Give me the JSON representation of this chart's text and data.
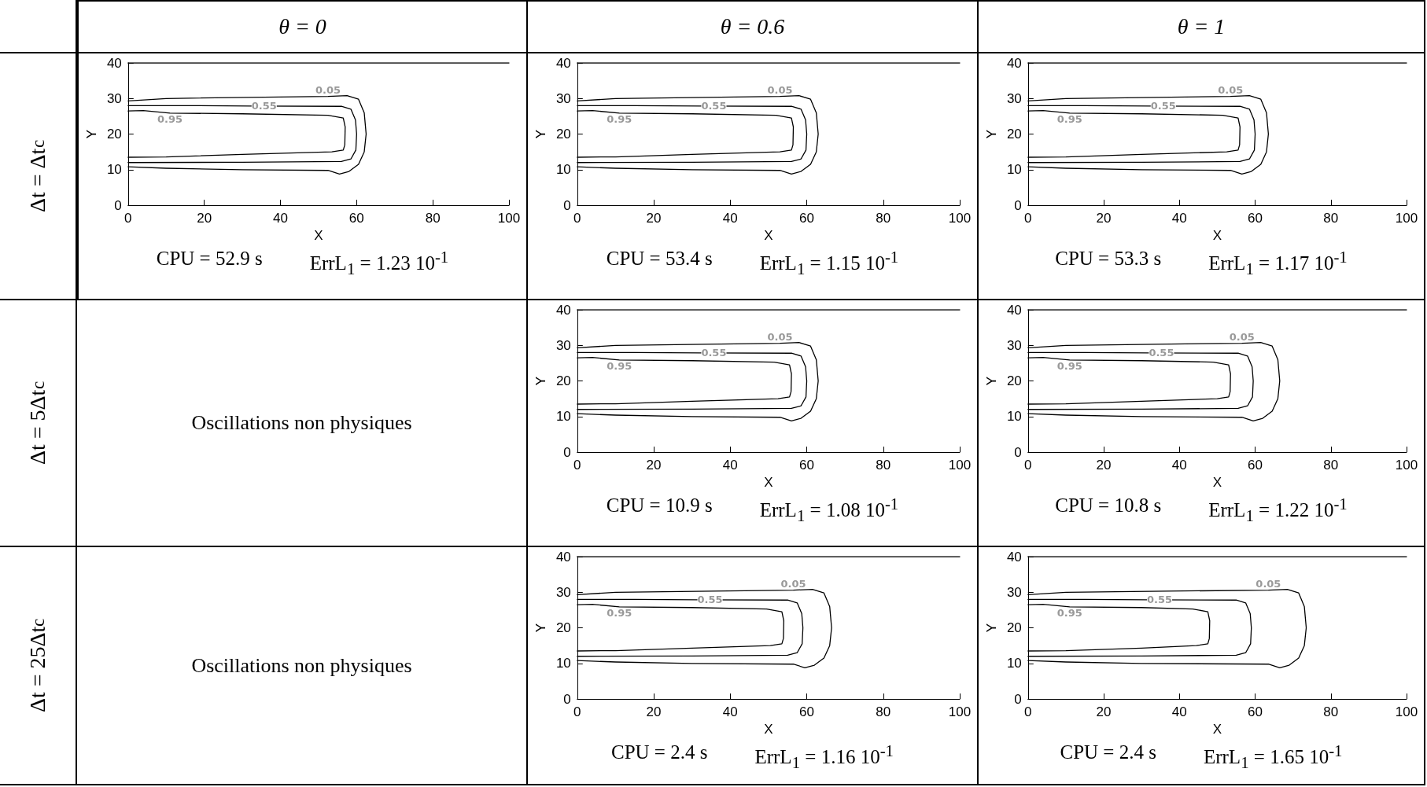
{
  "chart_data": [
    {
      "type": "other",
      "annotations": [
        "θ = 0",
        "θ = 0.6",
        "θ = 1",
        "Δt = Δt$_{c}$",
        "Δt = 5Δt$_{c}$",
        "Δt = 25Δt$_{c}$",
        "Oscillations non physiques",
        "Oscillations non physiques"
      ]
    },
    {
      "type": "line",
      "xlabel": "X",
      "ylabel": "Y",
      "xlim": [
        0,
        100
      ],
      "xticks": [
        0,
        20,
        40,
        60,
        80,
        100
      ],
      "ylim": [
        0,
        40
      ],
      "yticks": [
        0,
        10,
        20,
        30,
        40
      ],
      "marker": "none",
      "line_style": "solid",
      "annotations": [
        "CPU = 52.9 s",
        "ErrL$_{1}$ = 1.23 10$^{-1}$"
      ],
      "series": [
        {
          "name": "0.05",
          "color": "#000000",
          "x": [
            0,
            10,
            52.5,
            57.5,
            60.5,
            62,
            62.5,
            62,
            60.5,
            58,
            55.5,
            52.5,
            30,
            10,
            0
          ],
          "values": [
            29.3,
            30,
            30.6,
            30.8,
            29.8,
            26,
            20,
            15,
            11.5,
            9.5,
            8.8,
            9.8,
            10,
            10.4,
            10.8
          ]
        },
        {
          "name": "0.55",
          "color": "#000000",
          "x": [
            0,
            15,
            32,
            56,
            58.5,
            59.7,
            60,
            59.8,
            58.5,
            56,
            30,
            0
          ],
          "values": [
            28,
            28,
            27.9,
            27.8,
            27,
            24,
            20,
            15.5,
            13,
            12.3,
            12.1,
            12
          ]
        },
        {
          "name": "0.95",
          "color": "#000000",
          "x": [
            0,
            4,
            11,
            30,
            52.5,
            56.5,
            57,
            56.9,
            56.5,
            53.5,
            30,
            10,
            0
          ],
          "values": [
            26.5,
            26.6,
            25.9,
            25.7,
            25.3,
            24.5,
            22,
            17,
            15.5,
            15,
            14.3,
            13.6,
            13.5
          ]
        },
        {
          "color": "#000000",
          "x": [
            0,
            100
          ],
          "values": [
            40,
            40
          ]
        }
      ]
    },
    {
      "type": "line",
      "xlabel": "X",
      "ylabel": "Y",
      "xlim": [
        0,
        100
      ],
      "xticks": [
        0,
        20,
        40,
        60,
        80,
        100
      ],
      "ylim": [
        0,
        40
      ],
      "yticks": [
        0,
        10,
        20,
        30,
        40
      ],
      "marker": "none",
      "line_style": "solid",
      "annotations": [
        "CPU = 53.4 s",
        "ErrL$_{1}$ = 1.15 10$^{-1}$"
      ],
      "series": [
        {
          "name": "0.05",
          "color": "#000000",
          "x": [
            0,
            10,
            53,
            58,
            61,
            62.5,
            63,
            62.5,
            61,
            58.5,
            56,
            53,
            30,
            10,
            0
          ],
          "values": [
            29.3,
            30,
            30.6,
            30.8,
            29.8,
            26,
            20,
            15,
            11.5,
            9.5,
            8.8,
            9.8,
            10,
            10.4,
            10.8
          ]
        },
        {
          "name": "0.55",
          "color": "#000000",
          "x": [
            0,
            15,
            32,
            56,
            58.5,
            59.7,
            60,
            59.8,
            58.5,
            56,
            30,
            0
          ],
          "values": [
            28,
            28,
            27.9,
            27.8,
            27,
            24,
            20,
            15.5,
            13,
            12.3,
            12.1,
            12
          ]
        },
        {
          "name": "0.95",
          "color": "#000000",
          "x": [
            0,
            4,
            11,
            30,
            52,
            56,
            56.5,
            56.4,
            56,
            53,
            30,
            10,
            0
          ],
          "values": [
            26.5,
            26.6,
            25.9,
            25.7,
            25.3,
            24.5,
            22,
            17,
            15.5,
            15,
            14.3,
            13.6,
            13.5
          ]
        },
        {
          "color": "#000000",
          "x": [
            0,
            100
          ],
          "values": [
            40,
            40
          ]
        }
      ]
    },
    {
      "type": "line",
      "xlabel": "X",
      "ylabel": "Y",
      "xlim": [
        0,
        100
      ],
      "xticks": [
        0,
        20,
        40,
        60,
        80,
        100
      ],
      "ylim": [
        0,
        40
      ],
      "yticks": [
        0,
        10,
        20,
        30,
        40
      ],
      "marker": "none",
      "line_style": "solid",
      "annotations": [
        "CPU = 53.3 s",
        "ErrL$_{1}$ = 1.17 10$^{-1}$"
      ],
      "series": [
        {
          "name": "0.05",
          "color": "#000000",
          "x": [
            0,
            10,
            53.5,
            58.5,
            61.5,
            63,
            63.5,
            63,
            61.5,
            59,
            56.5,
            53.5,
            30,
            10,
            0
          ],
          "values": [
            29.3,
            30,
            30.6,
            30.8,
            29.8,
            26,
            20,
            15,
            11.5,
            9.5,
            8.8,
            9.8,
            10,
            10.4,
            10.8
          ]
        },
        {
          "name": "0.55",
          "color": "#000000",
          "x": [
            0,
            15,
            32,
            56,
            58.5,
            59.7,
            60,
            59.8,
            58.5,
            56,
            30,
            0
          ],
          "values": [
            28,
            28,
            27.9,
            27.8,
            27,
            24,
            20,
            15.5,
            13,
            12.3,
            12.1,
            12
          ]
        },
        {
          "name": "0.95",
          "color": "#000000",
          "x": [
            0,
            4,
            11,
            30,
            51.5,
            55.5,
            56,
            55.9,
            55.5,
            52.5,
            30,
            10,
            0
          ],
          "values": [
            26.5,
            26.6,
            25.9,
            25.7,
            25.3,
            24.5,
            22,
            17,
            15.5,
            15,
            14.3,
            13.6,
            13.5
          ]
        },
        {
          "color": "#000000",
          "x": [
            0,
            100
          ],
          "values": [
            40,
            40
          ]
        }
      ]
    },
    {
      "type": "line",
      "xlabel": "X",
      "ylabel": "Y",
      "xlim": [
        0,
        100
      ],
      "xticks": [
        0,
        20,
        40,
        60,
        80,
        100
      ],
      "ylim": [
        0,
        40
      ],
      "yticks": [
        0,
        10,
        20,
        30,
        40
      ],
      "marker": "none",
      "line_style": "solid",
      "annotations": [
        "CPU = 10.9 s",
        "ErrL$_{1}$ = 1.08 10$^{-1}$"
      ],
      "series": [
        {
          "name": "0.05",
          "color": "#000000",
          "x": [
            0,
            10,
            53,
            58,
            61,
            62.5,
            63,
            62.5,
            61,
            58.5,
            56,
            53,
            30,
            10,
            0
          ],
          "values": [
            29.3,
            30,
            30.6,
            30.8,
            29.8,
            26,
            20,
            15,
            11.5,
            9.5,
            8.8,
            9.8,
            10,
            10.4,
            10.8
          ]
        },
        {
          "name": "0.55",
          "color": "#000000",
          "x": [
            0,
            15,
            32,
            56,
            58.5,
            59.7,
            60,
            59.8,
            58.5,
            56,
            30,
            0
          ],
          "values": [
            28,
            28,
            27.9,
            27.8,
            27,
            24,
            20,
            15.5,
            13,
            12.3,
            12.1,
            12
          ]
        },
        {
          "name": "0.95",
          "color": "#000000",
          "x": [
            0,
            4,
            11,
            30,
            51.5,
            55.5,
            56,
            55.9,
            55.5,
            52.5,
            30,
            10,
            0
          ],
          "values": [
            26.5,
            26.6,
            25.9,
            25.7,
            25.3,
            24.5,
            22,
            17,
            15.5,
            15,
            14.3,
            13.6,
            13.5
          ]
        },
        {
          "color": "#000000",
          "x": [
            0,
            100
          ],
          "values": [
            40,
            40
          ]
        }
      ]
    },
    {
      "type": "line",
      "xlabel": "X",
      "ylabel": "Y",
      "xlim": [
        0,
        100
      ],
      "xticks": [
        0,
        20,
        40,
        60,
        80,
        100
      ],
      "ylim": [
        0,
        40
      ],
      "yticks": [
        0,
        10,
        20,
        30,
        40
      ],
      "marker": "none",
      "line_style": "solid",
      "annotations": [
        "CPU = 10.8 s",
        "ErrL$_{1}$ = 1.22 10$^{-1}$"
      ],
      "series": [
        {
          "name": "0.05",
          "color": "#000000",
          "x": [
            0,
            10,
            56.5,
            61.5,
            64.5,
            66,
            66.5,
            66,
            64.5,
            62,
            59.5,
            56.5,
            30,
            10,
            0
          ],
          "values": [
            29.3,
            30,
            30.6,
            30.8,
            29.8,
            26,
            20,
            15,
            11.5,
            9.5,
            8.8,
            9.8,
            10,
            10.4,
            10.8
          ]
        },
        {
          "name": "0.55",
          "color": "#000000",
          "x": [
            0,
            15,
            31.5,
            55.5,
            58,
            59.2,
            59.5,
            59.3,
            58,
            55.5,
            30,
            0
          ],
          "values": [
            28,
            28,
            27.9,
            27.8,
            27,
            24,
            20,
            15.5,
            13,
            12.3,
            12.1,
            12
          ]
        },
        {
          "name": "0.95",
          "color": "#000000",
          "x": [
            0,
            4,
            11,
            30,
            49,
            53,
            53.5,
            53.4,
            53,
            50,
            30,
            10,
            0
          ],
          "values": [
            26.5,
            26.6,
            25.9,
            25.7,
            25.3,
            24.5,
            22,
            17,
            15.5,
            15,
            14.3,
            13.6,
            13.5
          ]
        },
        {
          "color": "#000000",
          "x": [
            0,
            100
          ],
          "values": [
            40,
            40
          ]
        }
      ]
    },
    {
      "type": "line",
      "xlabel": "X",
      "ylabel": "Y",
      "xlim": [
        0,
        100
      ],
      "xticks": [
        0,
        20,
        40,
        60,
        80,
        100
      ],
      "ylim": [
        0,
        40
      ],
      "yticks": [
        0,
        10,
        20,
        30,
        40
      ],
      "marker": "none",
      "line_style": "solid",
      "annotations": [
        "CPU = 2.4 s",
        "ErrL$_{1}$ = 1.16 10$^{-1}$"
      ],
      "series": [
        {
          "name": "0.05",
          "color": "#000000",
          "x": [
            0,
            10,
            56.5,
            61.5,
            64.5,
            66,
            66.5,
            66,
            64.5,
            62,
            59.5,
            56.5,
            30,
            10,
            0
          ],
          "values": [
            29.3,
            30,
            30.6,
            30.8,
            29.8,
            26,
            20,
            15,
            11.5,
            9.5,
            8.8,
            9.8,
            10,
            10.4,
            10.8
          ]
        },
        {
          "name": "0.55",
          "color": "#000000",
          "x": [
            0,
            15,
            31,
            55,
            57.5,
            58.7,
            59,
            58.8,
            57.5,
            55,
            30,
            0
          ],
          "values": [
            28,
            28,
            27.9,
            27.8,
            27,
            24,
            20,
            15.5,
            13,
            12.3,
            12.1,
            12
          ]
        },
        {
          "name": "0.95",
          "color": "#000000",
          "x": [
            0,
            4,
            11,
            30,
            49.5,
            53.5,
            54,
            53.9,
            53.5,
            50.5,
            30,
            10,
            0
          ],
          "values": [
            26.5,
            26.6,
            25.9,
            25.7,
            25.3,
            24.5,
            22,
            17,
            15.5,
            15,
            14.3,
            13.6,
            13.5
          ]
        },
        {
          "color": "#000000",
          "x": [
            0,
            100
          ],
          "values": [
            40,
            40
          ]
        }
      ]
    },
    {
      "type": "line",
      "xlabel": "X",
      "ylabel": "Y",
      "xlim": [
        0,
        100
      ],
      "xticks": [
        0,
        20,
        40,
        60,
        80,
        100
      ],
      "ylim": [
        0,
        40
      ],
      "yticks": [
        0,
        10,
        20,
        30,
        40
      ],
      "marker": "none",
      "line_style": "solid",
      "annotations": [
        "CPU = 2.4 s",
        "ErrL$_{1}$ = 1.65 10$^{-1}$"
      ],
      "series": [
        {
          "name": "0.05",
          "color": "#000000",
          "x": [
            0,
            10,
            63.5,
            68.5,
            71.5,
            73,
            73.5,
            73,
            71.5,
            69,
            66.5,
            63.5,
            30,
            10,
            0
          ],
          "values": [
            29.3,
            30,
            30.6,
            30.8,
            29.8,
            26,
            20,
            15,
            11.5,
            9.5,
            8.8,
            9.8,
            10,
            10.4,
            10.8
          ]
        },
        {
          "name": "0.55",
          "color": "#000000",
          "x": [
            0,
            15,
            31,
            55,
            57.5,
            58.7,
            59,
            58.8,
            57.5,
            55,
            30,
            0
          ],
          "values": [
            28,
            28,
            27.9,
            27.8,
            27,
            24,
            20,
            15.5,
            13,
            12.3,
            12.1,
            12
          ]
        },
        {
          "name": "0.95",
          "color": "#000000",
          "x": [
            0,
            4,
            11,
            30,
            43.5,
            47.5,
            48,
            47.9,
            47.5,
            44.5,
            30,
            10,
            0
          ],
          "values": [
            26.5,
            26.6,
            25.9,
            25.7,
            25.3,
            24.5,
            22,
            17,
            15.5,
            15,
            14.3,
            13.6,
            13.5
          ]
        },
        {
          "color": "#000000",
          "x": [
            0,
            100
          ],
          "values": [
            40,
            40
          ]
        }
      ]
    }
  ]
}
